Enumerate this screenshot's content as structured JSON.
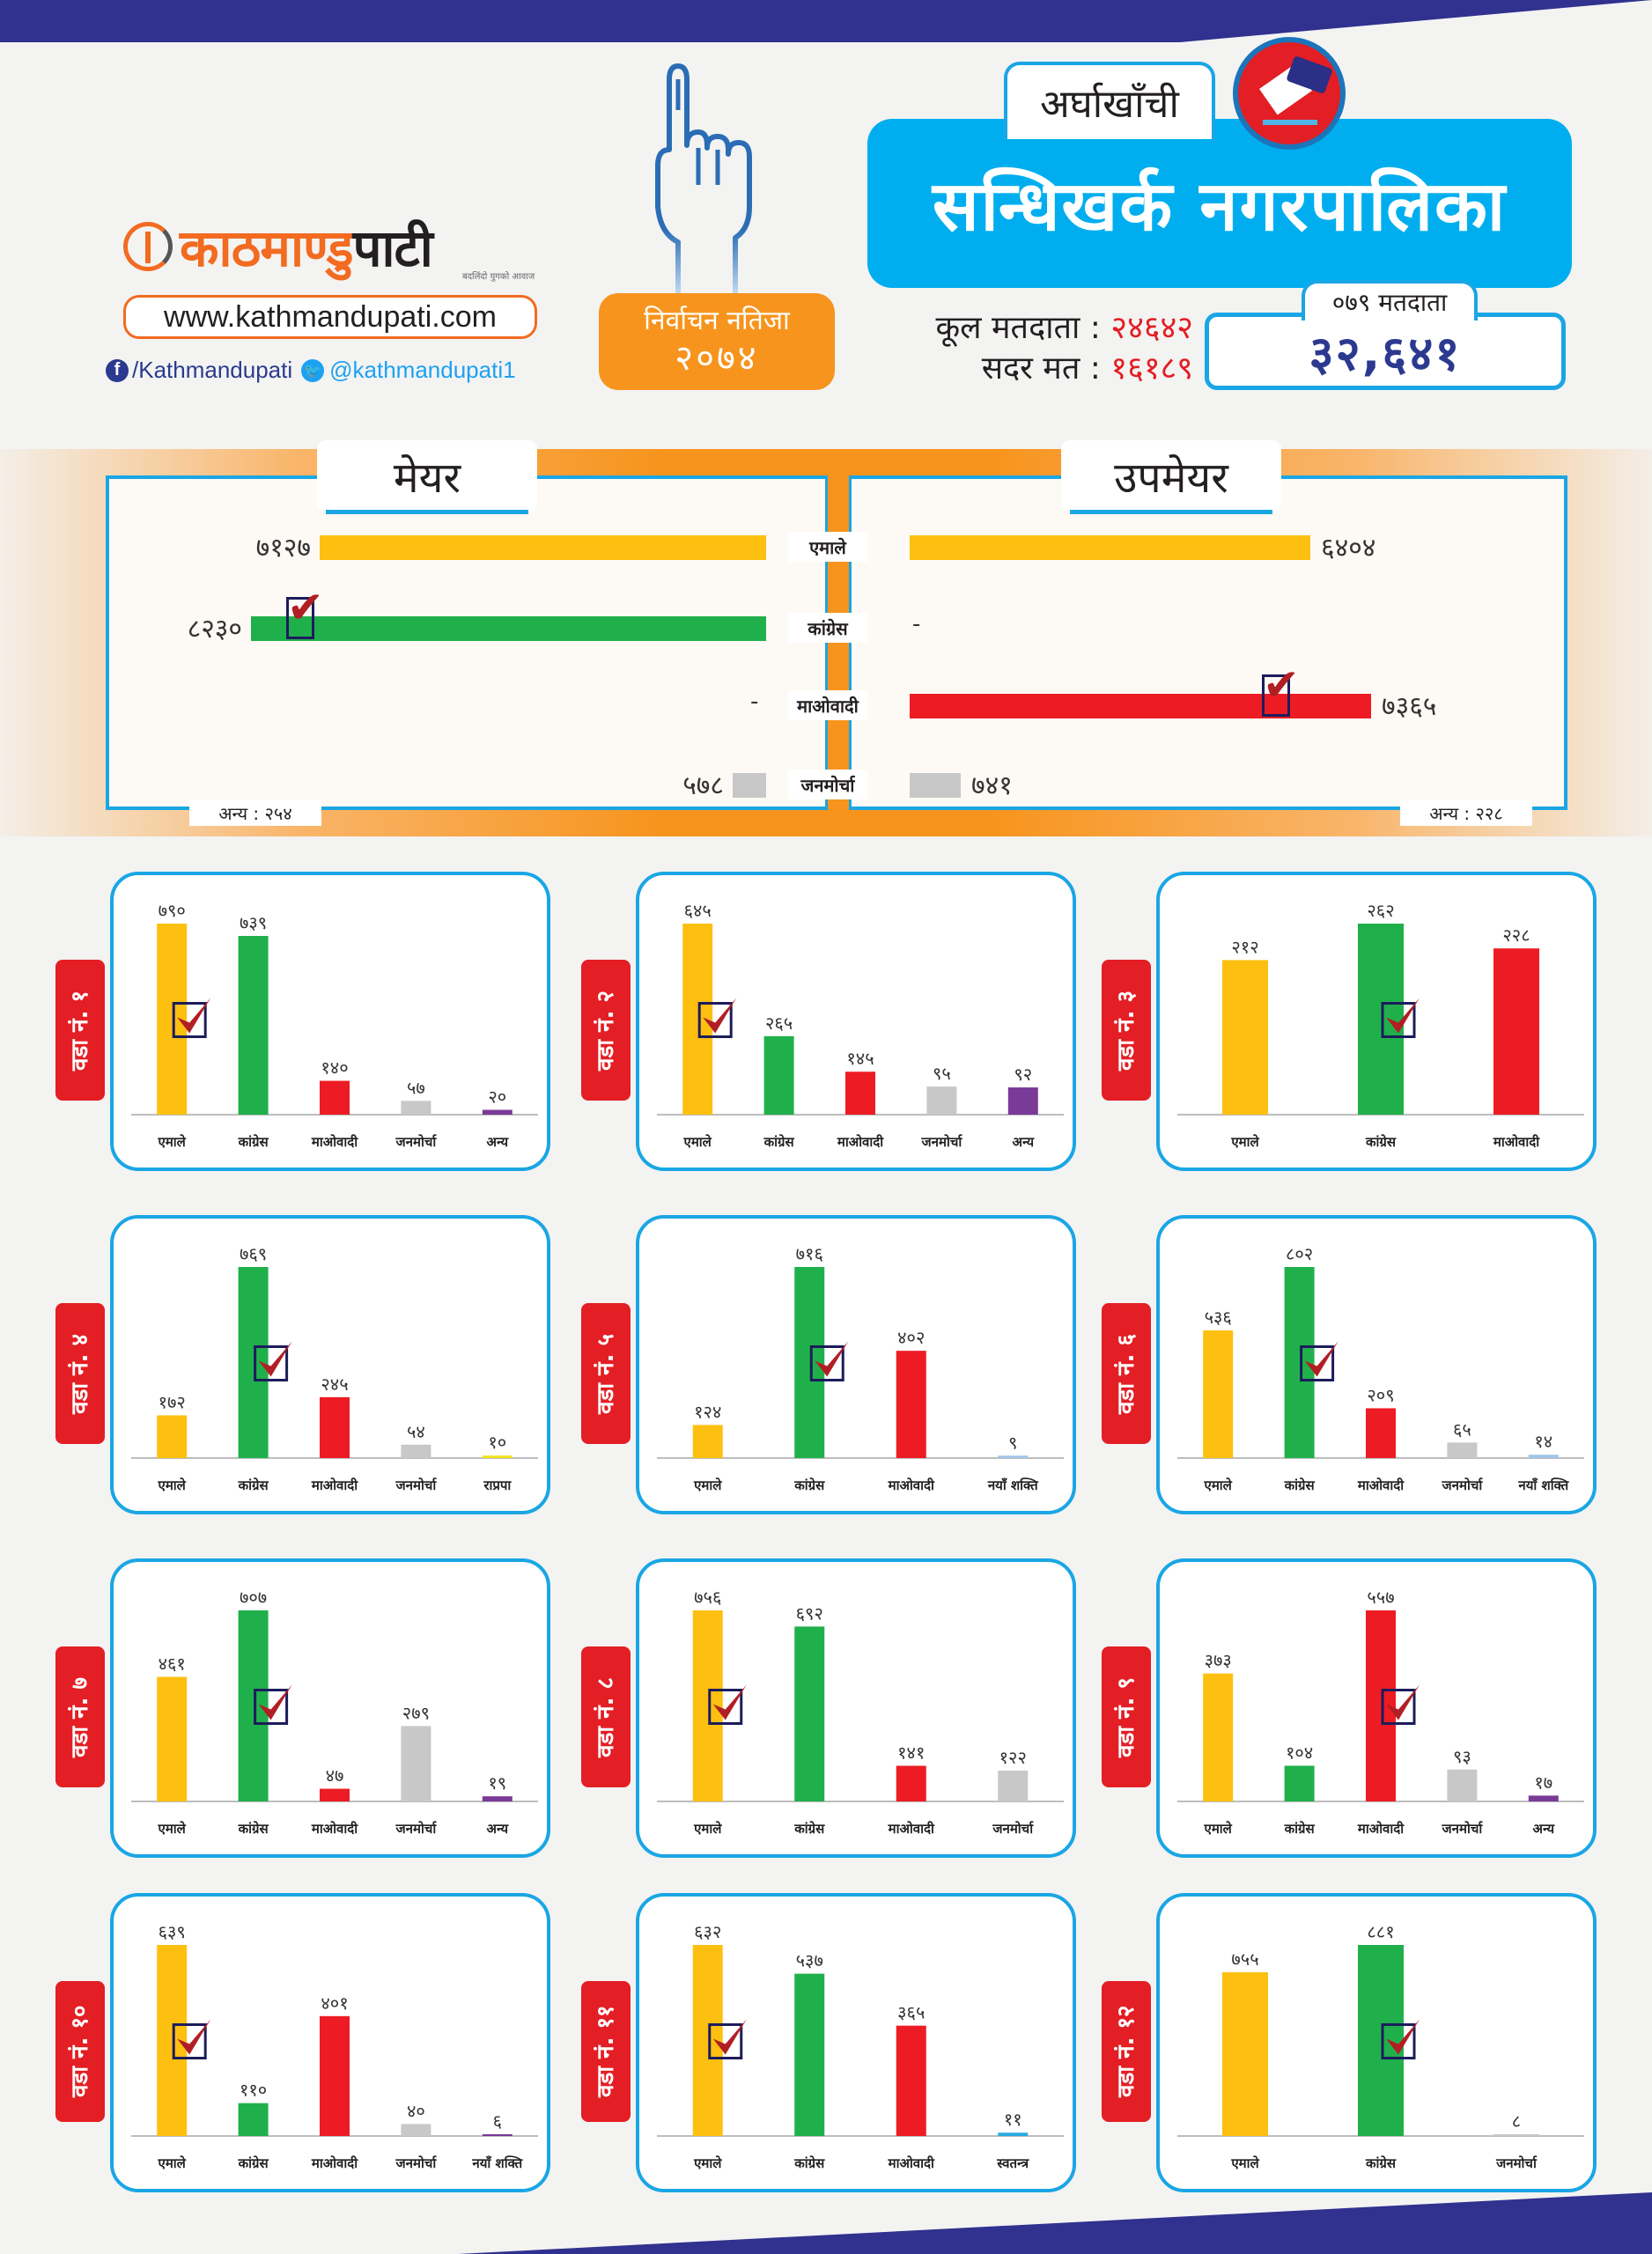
{
  "header": {
    "brand_part1": "काठमाण्डु",
    "brand_part2": "पाटी",
    "brand_tagline": "बदलिंदो युगको आवाज",
    "website": "www.kathmandupati.com",
    "facebook": "/Kathmandupati",
    "twitter": "@kathmandupati1",
    "badge_line1": "निर्वाचन नतिजा",
    "badge_line2": "२०७४",
    "district": "अर्घाखाँची",
    "municipality": "सन्धिखर्क नगरपालिका",
    "total_voters_label": "कूल मतदाता :",
    "total_voters_value": "२४६४२",
    "valid_votes_label": "सदर मत :",
    "valid_votes_value": "१६१८९",
    "voters_2079_label": "०७९ मतदाता",
    "voters_2079_value": "३२,६४१"
  },
  "colors": {
    "emale": "#fdc010",
    "congress": "#20b04b",
    "maoist": "#ed1c24",
    "janmorcha": "#c8c8c8",
    "other": "#7a3a98",
    "naya_shakti": "#9fc5e8",
    "rpp": "#f2e21a",
    "independent": "#29abe2",
    "accent_blue": "#1aa6e4",
    "accent_orange": "#f7941d",
    "navy": "#31318f"
  },
  "chart_data": [
    {
      "type": "bar",
      "title": "मेयर",
      "orientation": "horizontal",
      "categories": [
        "एमाले",
        "कांग्रेस",
        "माओवादी",
        "जनमोर्चा"
      ],
      "values": [
        7127,
        8230,
        null,
        578
      ],
      "labels": [
        "७१२७",
        "८२३०",
        "-",
        "५७८"
      ],
      "winner": "कांग्रेस",
      "others_label": "अन्य : २५४",
      "others_value": 254
    },
    {
      "type": "bar",
      "title": "उपमेयर",
      "orientation": "horizontal",
      "categories": [
        "एमाले",
        "कांग्रेस",
        "माओवादी",
        "जनमोर्चा"
      ],
      "values": [
        6404,
        null,
        7365,
        741
      ],
      "labels": [
        "६४०४",
        "-",
        "७३६५",
        "७४१"
      ],
      "winner": "माओवादी",
      "others_label": "अन्य : २२८",
      "others_value": 228
    },
    {
      "type": "bar",
      "title": "वडा नं. १",
      "categories": [
        "एमाले",
        "कांग्रेस",
        "माओवादी",
        "जनमोर्चा",
        "अन्य"
      ],
      "keys": [
        "emale",
        "congress",
        "maoist",
        "janmorcha",
        "other"
      ],
      "values": [
        790,
        739,
        140,
        57,
        20
      ],
      "labels": [
        "७९०",
        "७३९",
        "१४०",
        "५७",
        "२०"
      ],
      "winner_index": 0
    },
    {
      "type": "bar",
      "title": "वडा नं. २",
      "categories": [
        "एमाले",
        "कांग्रेस",
        "माओवादी",
        "जनमोर्चा",
        "अन्य"
      ],
      "keys": [
        "emale",
        "congress",
        "maoist",
        "janmorcha",
        "other"
      ],
      "values": [
        645,
        265,
        145,
        95,
        92
      ],
      "labels": [
        "६४५",
        "२६५",
        "१४५",
        "९५",
        "९२"
      ],
      "winner_index": 0
    },
    {
      "type": "bar",
      "title": "वडा नं. ३",
      "categories": [
        "एमाले",
        "कांग्रेस",
        "माओवादी"
      ],
      "keys": [
        "emale",
        "congress",
        "maoist"
      ],
      "values": [
        212,
        262,
        228
      ],
      "labels": [
        "२१२",
        "२६२",
        "२२८"
      ],
      "winner_index": 1
    },
    {
      "type": "bar",
      "title": "वडा नं. ४",
      "categories": [
        "एमाले",
        "कांग्रेस",
        "माओवादी",
        "जनमोर्चा",
        "राप्रपा"
      ],
      "keys": [
        "emale",
        "congress",
        "maoist",
        "janmorcha",
        "rpp"
      ],
      "values": [
        172,
        769,
        245,
        54,
        10
      ],
      "labels": [
        "१७२",
        "७६९",
        "२४५",
        "५४",
        "१०"
      ],
      "winner_index": 1
    },
    {
      "type": "bar",
      "title": "वडा नं. ५",
      "categories": [
        "एमाले",
        "कांग्रेस",
        "माओवादी",
        "नयाँ शक्ति"
      ],
      "keys": [
        "emale",
        "congress",
        "maoist",
        "naya_shakti"
      ],
      "values": [
        124,
        716,
        402,
        9
      ],
      "labels": [
        "१२४",
        "७१६",
        "४०२",
        "९"
      ],
      "winner_index": 1
    },
    {
      "type": "bar",
      "title": "वडा नं. ६",
      "categories": [
        "एमाले",
        "कांग्रेस",
        "माओवादी",
        "जनमोर्चा",
        "नयाँ शक्ति"
      ],
      "keys": [
        "emale",
        "congress",
        "maoist",
        "janmorcha",
        "naya_shakti"
      ],
      "values": [
        536,
        802,
        209,
        65,
        14
      ],
      "labels": [
        "५३६",
        "८०२",
        "२०९",
        "६५",
        "१४"
      ],
      "winner_index": 1
    },
    {
      "type": "bar",
      "title": "वडा नं. ७",
      "categories": [
        "एमाले",
        "कांग्रेस",
        "माओवादी",
        "जनमोर्चा",
        "अन्य"
      ],
      "keys": [
        "emale",
        "congress",
        "maoist",
        "janmorcha",
        "other"
      ],
      "values": [
        461,
        707,
        47,
        279,
        19
      ],
      "labels": [
        "४६१",
        "७०७",
        "४७",
        "२७९",
        "१९"
      ],
      "winner_index": 1
    },
    {
      "type": "bar",
      "title": "वडा नं. ८",
      "categories": [
        "एमाले",
        "कांग्रेस",
        "माओवादी",
        "जनमोर्चा"
      ],
      "keys": [
        "emale",
        "congress",
        "maoist",
        "janmorcha"
      ],
      "values": [
        756,
        692,
        141,
        122
      ],
      "labels": [
        "७५६",
        "६९२",
        "१४१",
        "१२२"
      ],
      "winner_index": 0
    },
    {
      "type": "bar",
      "title": "वडा नं. ९",
      "categories": [
        "एमाले",
        "कांग्रेस",
        "माओवादी",
        "जनमोर्चा",
        "अन्य"
      ],
      "keys": [
        "emale",
        "congress",
        "maoist",
        "janmorcha",
        "other"
      ],
      "values": [
        373,
        104,
        557,
        93,
        17
      ],
      "labels": [
        "३७३",
        "१०४",
        "५५७",
        "९३",
        "१७"
      ],
      "winner_index": 2
    },
    {
      "type": "bar",
      "title": "वडा नं. १०",
      "categories": [
        "एमाले",
        "कांग्रेस",
        "माओवादी",
        "जनमोर्चा",
        "नयाँ शक्ति"
      ],
      "keys": [
        "emale",
        "congress",
        "maoist",
        "janmorcha",
        "other"
      ],
      "values": [
        639,
        110,
        401,
        40,
        6
      ],
      "labels": [
        "६३९",
        "११०",
        "४०१",
        "४०",
        "६"
      ],
      "winner_index": 0
    },
    {
      "type": "bar",
      "title": "वडा नं. ११",
      "categories": [
        "एमाले",
        "कांग्रेस",
        "माओवादी",
        "स्वतन्त्र"
      ],
      "keys": [
        "emale",
        "congress",
        "maoist",
        "independent"
      ],
      "values": [
        632,
        537,
        365,
        11
      ],
      "labels": [
        "६३२",
        "५३७",
        "३६५",
        "११"
      ],
      "winner_index": 0
    },
    {
      "type": "bar",
      "title": "वडा नं. १२",
      "categories": [
        "एमाले",
        "कांग्रेस",
        "जनमोर्चा"
      ],
      "keys": [
        "emale",
        "congress",
        "janmorcha"
      ],
      "values": [
        755,
        881,
        8
      ],
      "labels": [
        "७५५",
        "८८१",
        "८"
      ],
      "winner_index": 1
    }
  ]
}
